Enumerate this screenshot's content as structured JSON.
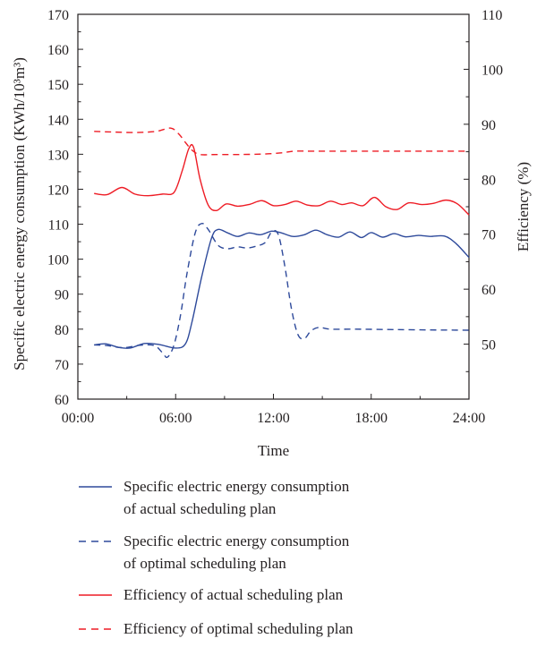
{
  "chart_data": {
    "type": "line",
    "xlabel": "Time",
    "ylabel_left": "Specific electric energy consumption (KWh/10³m³)",
    "ylabel_right": "Efficiency (%)",
    "x_range_hours": [
      0,
      24
    ],
    "x_ticks": [
      {
        "hour": 0,
        "label": "00:00"
      },
      {
        "hour": 6,
        "label": "06:00"
      },
      {
        "hour": 12,
        "label": "12:00"
      },
      {
        "hour": 18,
        "label": "18:00"
      },
      {
        "hour": 24,
        "label": "24:00"
      }
    ],
    "ylim_left": [
      60,
      170
    ],
    "y_ticks_left": [
      60,
      70,
      80,
      90,
      100,
      110,
      120,
      130,
      140,
      150,
      160,
      170
    ],
    "ylim_right": [
      40,
      110
    ],
    "y_ticks_right": [
      50,
      60,
      70,
      80,
      90,
      100,
      110
    ],
    "grid": false,
    "legend_position": "bottom",
    "series": [
      {
        "name": "Specific electric energy consumption of actual scheduling plan",
        "legend_lines": [
          "Specific electric energy consumption",
          "of actual scheduling plan"
        ],
        "axis": "left",
        "color": "#2e4a9b",
        "dash": "solid",
        "points": [
          [
            1,
            75.5
          ],
          [
            1.7,
            75.8
          ],
          [
            2.5,
            74.8
          ],
          [
            3.2,
            74.6
          ],
          [
            4.1,
            75.9
          ],
          [
            5,
            75.6
          ],
          [
            6,
            74.6
          ],
          [
            6.6,
            75.8
          ],
          [
            7,
            82
          ],
          [
            7.6,
            95
          ],
          [
            8.2,
            106
          ],
          [
            8.6,
            108.5
          ],
          [
            9.2,
            107.5
          ],
          [
            9.8,
            106.5
          ],
          [
            10.5,
            107.5
          ],
          [
            11.2,
            107
          ],
          [
            11.9,
            108
          ],
          [
            12.5,
            107.5
          ],
          [
            13.2,
            106.5
          ],
          [
            13.9,
            107
          ],
          [
            14.6,
            108.3
          ],
          [
            15.3,
            107
          ],
          [
            16,
            106.3
          ],
          [
            16.7,
            107.8
          ],
          [
            17.4,
            106.2
          ],
          [
            18,
            107.6
          ],
          [
            18.7,
            106.3
          ],
          [
            19.4,
            107.3
          ],
          [
            20.1,
            106.4
          ],
          [
            20.9,
            106.8
          ],
          [
            21.6,
            106.5
          ],
          [
            22.5,
            106.6
          ],
          [
            23.2,
            104.5
          ],
          [
            24,
            100.5
          ]
        ]
      },
      {
        "name": "Specific electric energy consumption of optimal scheduling plan",
        "legend_lines": [
          "Specific electric energy consumption",
          "of optimal scheduling plan"
        ],
        "axis": "left",
        "color": "#2e4a9b",
        "dash": "dashed",
        "points": [
          [
            1,
            75.5
          ],
          [
            1.8,
            75.3
          ],
          [
            2.8,
            74.7
          ],
          [
            3.8,
            75.4
          ],
          [
            4.7,
            75.3
          ],
          [
            5.2,
            73.2
          ],
          [
            5.5,
            72
          ],
          [
            5.9,
            75.5
          ],
          [
            6.3,
            84
          ],
          [
            6.7,
            96
          ],
          [
            7.2,
            107.5
          ],
          [
            7.6,
            110.2
          ],
          [
            8,
            108.5
          ],
          [
            8.6,
            104
          ],
          [
            9.2,
            103
          ],
          [
            9.8,
            103.5
          ],
          [
            10.4,
            103.2
          ],
          [
            11,
            103.8
          ],
          [
            11.5,
            104.8
          ],
          [
            11.9,
            107.8
          ],
          [
            12.3,
            107
          ],
          [
            12.7,
            98
          ],
          [
            13.1,
            86
          ],
          [
            13.5,
            78.5
          ],
          [
            13.9,
            77.3
          ],
          [
            14.3,
            79.5
          ],
          [
            14.8,
            80.5
          ],
          [
            15.5,
            80
          ],
          [
            17,
            80
          ],
          [
            19,
            79.9
          ],
          [
            21,
            79.8
          ],
          [
            24,
            79.7
          ]
        ]
      },
      {
        "name": "Efficiency of actual scheduling plan",
        "legend_lines": [
          "Efficiency of actual scheduling plan"
        ],
        "axis": "right",
        "color": "#ee1c25",
        "dash": "solid",
        "points": [
          [
            1,
            77.4
          ],
          [
            1.8,
            77.2
          ],
          [
            2.7,
            78.5
          ],
          [
            3.5,
            77.3
          ],
          [
            4.3,
            77
          ],
          [
            5.2,
            77.3
          ],
          [
            5.9,
            77.6
          ],
          [
            6.4,
            81.5
          ],
          [
            6.8,
            85.5
          ],
          [
            7.1,
            85.8
          ],
          [
            7.5,
            80
          ],
          [
            8,
            75.3
          ],
          [
            8.5,
            74.3
          ],
          [
            9.1,
            75.5
          ],
          [
            9.8,
            75.1
          ],
          [
            10.5,
            75.4
          ],
          [
            11.3,
            76.1
          ],
          [
            12,
            75.2
          ],
          [
            12.7,
            75.4
          ],
          [
            13.4,
            76
          ],
          [
            14.1,
            75.3
          ],
          [
            14.8,
            75.2
          ],
          [
            15.5,
            76
          ],
          [
            16.2,
            75.4
          ],
          [
            16.8,
            75.7
          ],
          [
            17.5,
            75.2
          ],
          [
            18.2,
            76.7
          ],
          [
            18.9,
            75
          ],
          [
            19.6,
            74.5
          ],
          [
            20.3,
            75.7
          ],
          [
            21.1,
            75.4
          ],
          [
            21.8,
            75.6
          ],
          [
            22.6,
            76.2
          ],
          [
            23.3,
            75.5
          ],
          [
            24,
            73.5
          ]
        ]
      },
      {
        "name": "Efficiency of optimal scheduling plan",
        "legend_lines": [
          "Efficiency of optimal scheduling plan"
        ],
        "axis": "right",
        "color": "#ee1c25",
        "dash": "dashed",
        "points": [
          [
            1,
            88.7
          ],
          [
            2,
            88.6
          ],
          [
            3.5,
            88.5
          ],
          [
            4.8,
            88.7
          ],
          [
            5.7,
            89.3
          ],
          [
            6.2,
            88.2
          ],
          [
            6.6,
            86.7
          ],
          [
            7,
            85.3
          ],
          [
            7.5,
            84.5
          ],
          [
            8.5,
            84.5
          ],
          [
            10,
            84.5
          ],
          [
            11.5,
            84.6
          ],
          [
            12.5,
            84.8
          ],
          [
            13.3,
            85.1
          ],
          [
            14.5,
            85.1
          ],
          [
            16,
            85.1
          ],
          [
            18,
            85.1
          ],
          [
            20,
            85.1
          ],
          [
            22,
            85.1
          ],
          [
            24,
            85.1
          ]
        ]
      }
    ]
  }
}
